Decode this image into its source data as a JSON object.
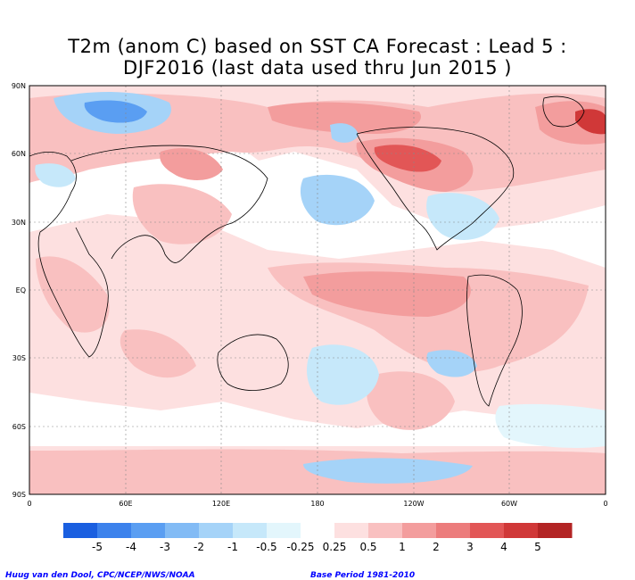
{
  "title": {
    "line1": "T2m (anom C) based on SST CA Forecast : Lead 5 :",
    "line2": "DJF2016 (last data used thru Jun 2015 )"
  },
  "map": {
    "variable": "T2m anomaly",
    "units": "C",
    "projection": "cylindrical equidistant",
    "lat_labels": [
      "90N",
      "60N",
      "30N",
      "EQ",
      "30S",
      "60S",
      "90S"
    ],
    "lon_labels": [
      "0",
      "60E",
      "120E",
      "180",
      "120W",
      "60W",
      "0"
    ],
    "grid": "dashed"
  },
  "colorbar": {
    "colors": [
      "#1a5fe0",
      "#3c82ec",
      "#5a9ef2",
      "#82bbf5",
      "#a5d3f8",
      "#c6e8fa",
      "#e3f6fc",
      "#ffffff",
      "#fde0e0",
      "#f9c0c0",
      "#f39d9d",
      "#ec7c7c",
      "#e25656",
      "#d03838",
      "#b32424"
    ],
    "labels": [
      "-5",
      "-4",
      "-3",
      "-2",
      "-1",
      "-0.5",
      "-0.25",
      "0.25",
      "0.5",
      "1",
      "2",
      "3",
      "4",
      "5"
    ]
  },
  "footer": {
    "credit": "Huug van den Dool, CPC/NCEP/NWS/NOAA",
    "base_period": "Base Period 1981-2010"
  }
}
